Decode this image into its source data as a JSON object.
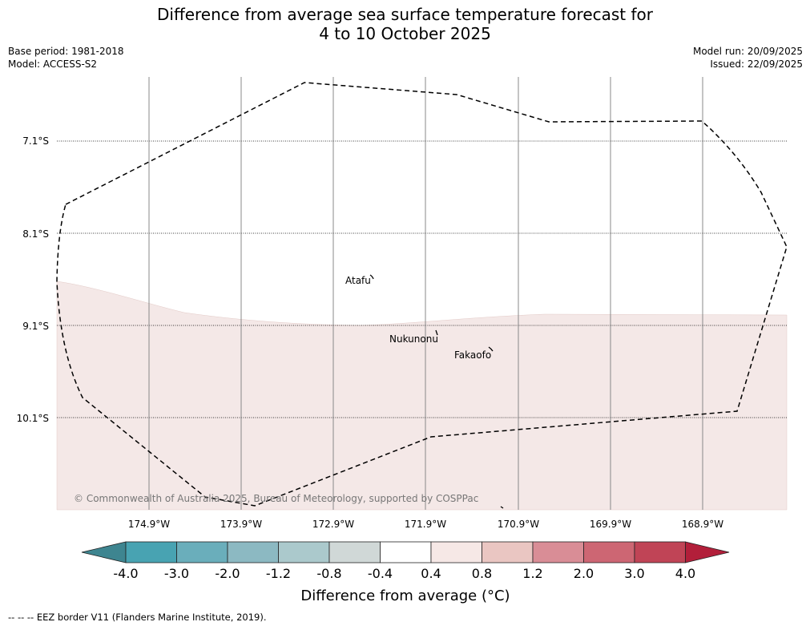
{
  "title": {
    "line1": "Difference from average sea surface temperature forecast for",
    "line2": "4 to 10 October 2025"
  },
  "meta": {
    "base_period": "Base period: 1981-2018",
    "model": "Model: ACCESS-S2",
    "model_run": "Model run: 20/09/2025",
    "issued": "Issued: 22/09/2025"
  },
  "map": {
    "longitude_labels": [
      "174.9°W",
      "173.9°W",
      "172.9°W",
      "171.9°W",
      "170.9°W",
      "169.9°W",
      "168.9°W"
    ],
    "latitude_labels": [
      "7.1°S",
      "8.1°S",
      "9.1°S",
      "10.1°S"
    ],
    "places": [
      "Atafu",
      "Nukunonu",
      "Fakaofo"
    ],
    "copyright": "© Commonwealth of Australia 2025, Bureau of Meteorology, supported by COSPPac",
    "shading_color": "#f4e8e7"
  },
  "colorbar": {
    "tick_labels": [
      "-4.0",
      "-3.0",
      "-2.0",
      "-1.2",
      "-0.8",
      "-0.4",
      "0.4",
      "0.8",
      "1.2",
      "2.0",
      "3.0",
      "4.0"
    ],
    "colors": [
      "#3e8590",
      "#48a3b2",
      "#6aaebb",
      "#8cb9c2",
      "#abc9cc",
      "#d0d8d7",
      "#ffffff",
      "#f6e8e6",
      "#eac6c2",
      "#d98d96",
      "#cd6673",
      "#c04456",
      "#b21f3a"
    ],
    "label": "Difference from average (°C)"
  },
  "footer": "-- -- -- EEZ border V11 (Flanders Marine Institute, 2019)."
}
